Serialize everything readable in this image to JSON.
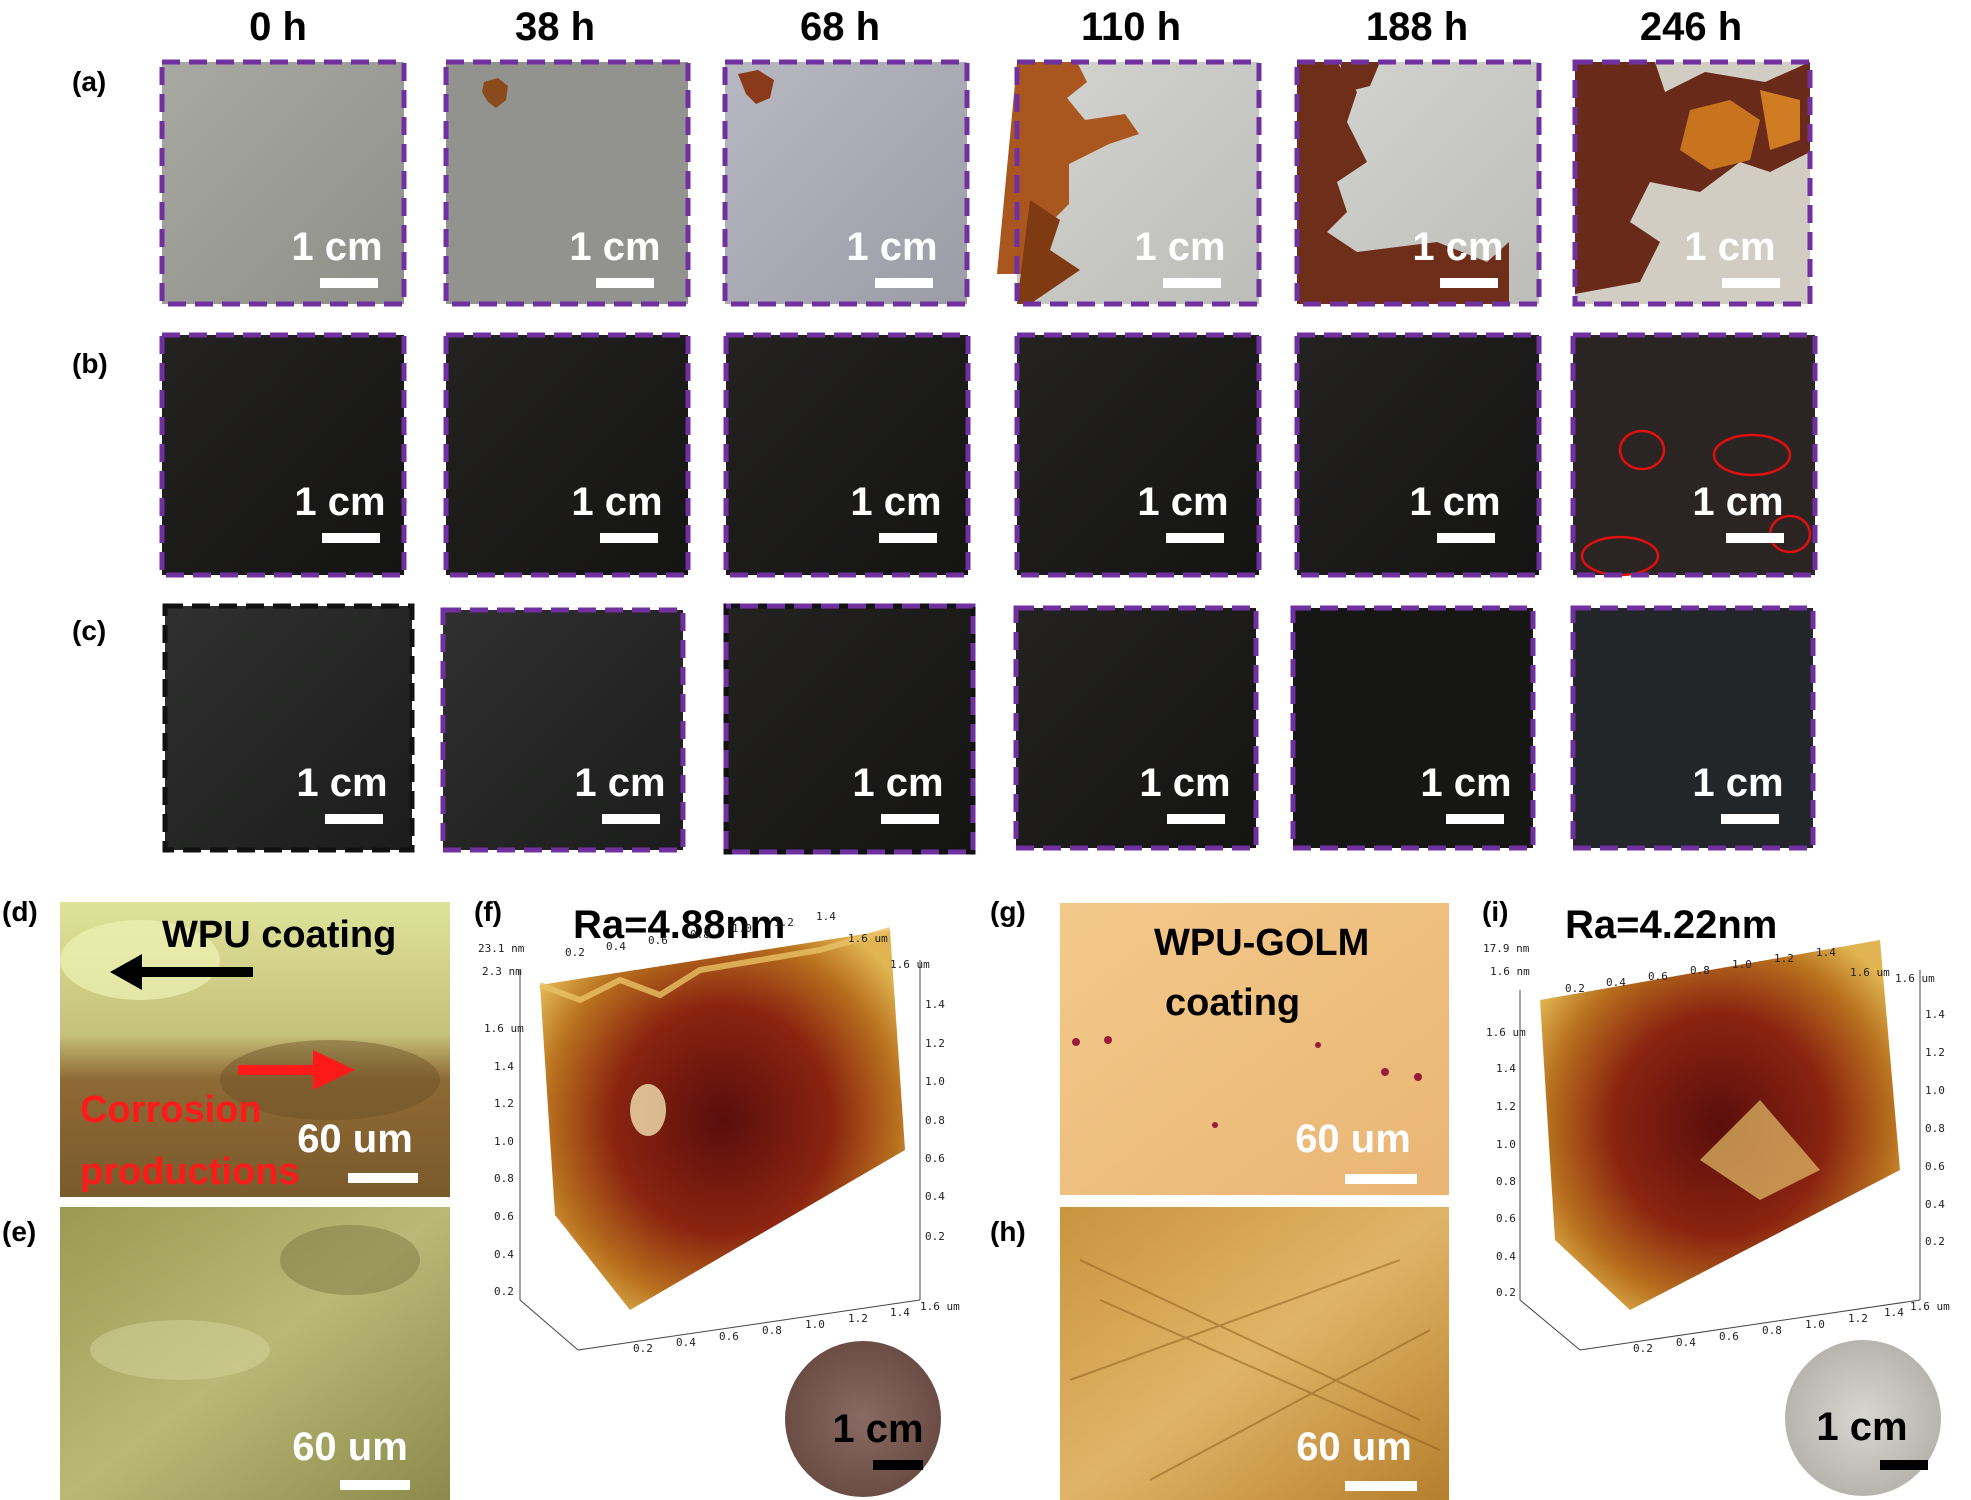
{
  "time_headers": [
    "0 h",
    "38 h",
    "68 h",
    "110 h",
    "188 h",
    "246 h"
  ],
  "row_labels": [
    "(a)",
    "(b)",
    "(c)"
  ],
  "scale_bar_cm": "1 cm",
  "scale_bar_um": "60 um",
  "panel_d": {
    "label": "(d)",
    "coating_text": "WPU coating",
    "corrosion_line1": "Corrosion",
    "corrosion_line2": "productions"
  },
  "panel_e": {
    "label": "(e)"
  },
  "panel_f": {
    "label": "(f)",
    "roughness": "Ra=4.88nm",
    "z_max": "23.1 nm",
    "z_tick": "2.3 nm"
  },
  "panel_g": {
    "label": "(g)",
    "coating_line1": "WPU-GOLM",
    "coating_line2": "coating"
  },
  "panel_h": {
    "label": "(h)"
  },
  "panel_i": {
    "label": "(i)",
    "roughness": "Ra=4.22nm",
    "z_max": "17.9 nm",
    "z_tick": "1.6 nm"
  },
  "axis_ticks": [
    "0.2",
    "0.4",
    "0.6",
    "0.8",
    "1.0",
    "1.2",
    "1.4",
    "1.6 um"
  ],
  "colors": {
    "frame_dash": "#7030a0",
    "red_arrow": "#ff1a1a",
    "ellipse": "#e01010"
  }
}
